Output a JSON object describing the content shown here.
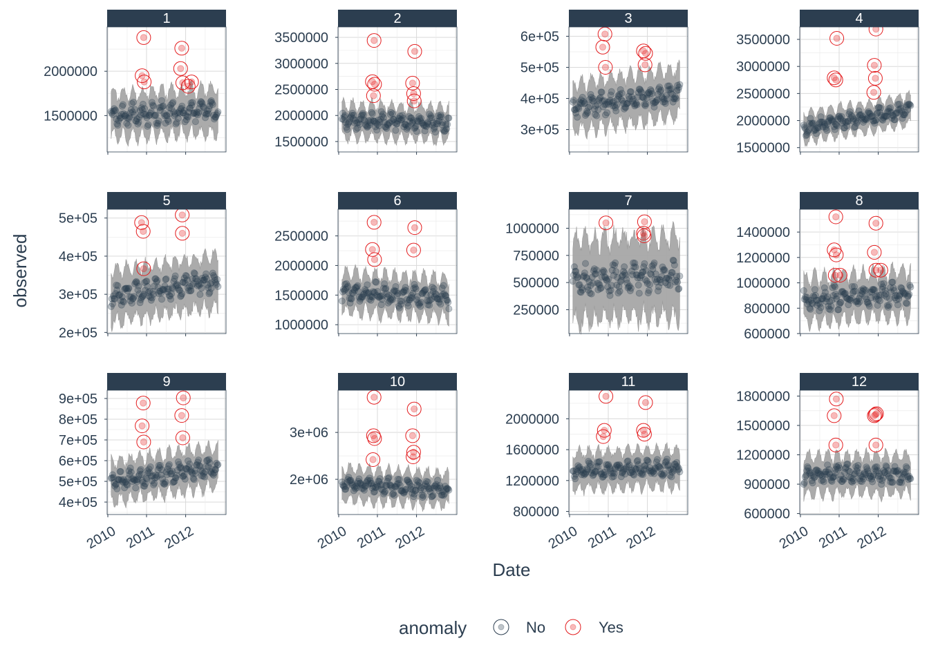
{
  "chart_data": {
    "type": "scatter",
    "layout": "faceted 3x4 time-series with anomaly markers",
    "xlabel": "Date",
    "ylabel": "observed",
    "x_ticks": [
      "2010",
      "2011",
      "2012"
    ],
    "x_range": [
      "2010-01-01",
      "2012-11-01"
    ],
    "legend": {
      "title": "anomaly",
      "position": "bottom",
      "entries": [
        {
          "label": "No",
          "color": "#2c3e50"
        },
        {
          "label": "Yes",
          "color": "#e31a1c"
        }
      ]
    },
    "colors": {
      "strip": "#2c3e50",
      "band": "#a6a6a6",
      "normal_point": "#2c3e50",
      "anomaly_point": "#e31a1c",
      "grid": "#d9d9d9"
    },
    "panels": [
      {
        "label": "1",
        "ylim": [
          1090000,
          2500000
        ],
        "yticks": [
          1500000,
          2000000
        ],
        "tick_labels": [
          "1500000",
          "2000000"
        ],
        "trend": [
          1500000,
          1560000
        ],
        "amp": 80000,
        "band": 240000,
        "anomalies": [
          [
            "2010-12-05",
            2380000
          ],
          [
            "2010-11-20",
            1950000
          ],
          [
            "2010-12-10",
            1880000
          ],
          [
            "2011-11-25",
            2260000
          ],
          [
            "2011-11-15",
            2030000
          ],
          [
            "2011-12-05",
            1870000
          ],
          [
            "2012-01-25",
            1830000
          ],
          [
            "2012-02-25",
            1880000
          ]
        ]
      },
      {
        "label": "2",
        "ylim": [
          1300000,
          3700000
        ],
        "yticks": [
          1500000,
          2000000,
          2500000,
          3000000,
          3500000
        ],
        "tick_labels": [
          "1500000",
          "2000000",
          "2500000",
          "3000000",
          "3500000"
        ],
        "trend": [
          1900000,
          1850000
        ],
        "amp": 110000,
        "band": 300000,
        "anomalies": [
          [
            "2010-12-01",
            3440000
          ],
          [
            "2010-11-15",
            2650000
          ],
          [
            "2010-12-05",
            2600000
          ],
          [
            "2010-11-25",
            2380000
          ],
          [
            "2011-12-15",
            3230000
          ],
          [
            "2011-11-25",
            2620000
          ],
          [
            "2011-12-05",
            2420000
          ],
          [
            "2011-12-10",
            2280000
          ]
        ]
      },
      {
        "label": "3",
        "ylim": [
          228000,
          630000
        ],
        "yticks": [
          300000,
          400000,
          500000,
          600000
        ],
        "tick_labels": [
          "3e+05",
          "4e+05",
          "5e+05",
          "6e+05"
        ],
        "trend": [
          370000,
          420000
        ],
        "amp": 22000,
        "band": 75000,
        "anomalies": [
          [
            "2010-12-01",
            607000
          ],
          [
            "2010-11-10",
            565000
          ],
          [
            "2010-12-05",
            500000
          ],
          [
            "2011-11-25",
            553000
          ],
          [
            "2011-12-15",
            545000
          ],
          [
            "2011-12-10",
            508000
          ]
        ]
      },
      {
        "label": "4",
        "ylim": [
          1420000,
          3730000
        ],
        "yticks": [
          1500000,
          2000000,
          2500000,
          3000000,
          3500000
        ],
        "tick_labels": [
          "1500000",
          "2000000",
          "2500000",
          "3000000",
          "3500000"
        ],
        "trend": [
          1870000,
          2200000
        ],
        "amp": 90000,
        "band": 250000,
        "anomalies": [
          [
            "2010-12-10",
            3520000
          ],
          [
            "2010-11-15",
            2790000
          ],
          [
            "2010-12-01",
            2750000
          ],
          [
            "2011-12-10",
            3690000
          ],
          [
            "2011-11-25",
            3020000
          ],
          [
            "2011-12-05",
            2780000
          ],
          [
            "2011-11-20",
            2520000
          ]
        ]
      },
      {
        "label": "5",
        "ylim": [
          197000,
          523000
        ],
        "yticks": [
          200000,
          300000,
          400000,
          500000
        ],
        "tick_labels": [
          "2e+05",
          "3e+05",
          "4e+05",
          "5e+05"
        ],
        "trend": [
          295000,
          335000
        ],
        "amp": 18000,
        "band": 65000,
        "anomalies": [
          [
            "2010-11-15",
            488000
          ],
          [
            "2010-12-01",
            465000
          ],
          [
            "2010-12-05",
            367000
          ],
          [
            "2011-11-30",
            508000
          ],
          [
            "2011-12-01",
            460000
          ]
        ]
      },
      {
        "label": "6",
        "ylim": [
          850000,
          2950000
        ],
        "yticks": [
          1000000,
          1500000,
          2000000,
          2500000
        ],
        "tick_labels": [
          "1000000",
          "1500000",
          "2000000",
          "2500000"
        ],
        "trend": [
          1550000,
          1450000
        ],
        "amp": 120000,
        "band": 320000,
        "anomalies": [
          [
            "2010-12-01",
            2730000
          ],
          [
            "2010-11-15",
            2270000
          ],
          [
            "2010-12-05",
            2100000
          ],
          [
            "2011-12-15",
            2640000
          ],
          [
            "2011-12-05",
            2260000
          ]
        ]
      },
      {
        "label": "7",
        "ylim": [
          30000,
          1175000
        ],
        "yticks": [
          250000,
          500000,
          750000,
          1000000
        ],
        "tick_labels": [
          "250000",
          "500000",
          "750000",
          "1000000"
        ],
        "trend": [
          520000,
          560000
        ],
        "amp": 90000,
        "band": 360000,
        "anomalies": [
          [
            "2010-12-10",
            1050000
          ],
          [
            "2011-12-05",
            1060000
          ],
          [
            "2011-11-25",
            955000
          ],
          [
            "2011-12-01",
            930000
          ]
        ]
      },
      {
        "label": "8",
        "ylim": [
          600000,
          1580000
        ],
        "yticks": [
          600000,
          800000,
          1000000,
          1200000,
          1400000
        ],
        "tick_labels": [
          "600000",
          "800000",
          "1000000",
          "1200000",
          "1400000"
        ],
        "trend": [
          860000,
          920000
        ],
        "amp": 60000,
        "band": 170000,
        "anomalies": [
          [
            "2010-12-01",
            1520000
          ],
          [
            "2010-11-15",
            1260000
          ],
          [
            "2010-12-05",
            1220000
          ],
          [
            "2010-11-25",
            1060000
          ],
          [
            "2011-01-10",
            1060000
          ],
          [
            "2011-12-10",
            1470000
          ],
          [
            "2011-11-25",
            1240000
          ],
          [
            "2011-12-10",
            1100000
          ],
          [
            "2012-01-25",
            1100000
          ]
        ]
      },
      {
        "label": "9",
        "ylim": [
          340000,
          940000
        ],
        "yticks": [
          400000,
          500000,
          600000,
          700000,
          800000,
          900000
        ],
        "tick_labels": [
          "4e+05",
          "5e+05",
          "6e+05",
          "7e+05",
          "8e+05",
          "9e+05"
        ],
        "trend": [
          500000,
          570000
        ],
        "amp": 30000,
        "band": 95000,
        "anomalies": [
          [
            "2010-12-01",
            878000
          ],
          [
            "2010-11-20",
            768000
          ],
          [
            "2010-12-05",
            690000
          ],
          [
            "2011-12-10",
            903000
          ],
          [
            "2011-11-25",
            818000
          ],
          [
            "2011-12-05",
            710000
          ]
        ]
      },
      {
        "label": "10",
        "ylim": [
          1250000,
          3900000
        ],
        "yticks": [
          2000000,
          3000000
        ],
        "tick_labels": [
          "2e+06",
          "3e+06"
        ],
        "trend": [
          1900000,
          1780000
        ],
        "amp": 110000,
        "band": 330000,
        "anomalies": [
          [
            "2010-12-01",
            3750000
          ],
          [
            "2010-11-25",
            2930000
          ],
          [
            "2010-12-05",
            2870000
          ],
          [
            "2010-11-20",
            2420000
          ],
          [
            "2011-12-10",
            3500000
          ],
          [
            "2011-11-25",
            2930000
          ],
          [
            "2011-12-05",
            2580000
          ],
          [
            "2011-11-30",
            2480000
          ]
        ]
      },
      {
        "label": "11",
        "ylim": [
          760000,
          2370000
        ],
        "yticks": [
          800000,
          1200000,
          1600000,
          2000000
        ],
        "tick_labels": [
          "800000",
          "1200000",
          "1600000",
          "2000000"
        ],
        "trend": [
          1330000,
          1360000
        ],
        "amp": 70000,
        "band": 230000,
        "anomalies": [
          [
            "2010-12-10",
            2290000
          ],
          [
            "2010-11-25",
            1850000
          ],
          [
            "2010-11-15",
            1770000
          ],
          [
            "2011-12-15",
            2210000
          ],
          [
            "2011-11-25",
            1850000
          ],
          [
            "2011-12-05",
            1800000
          ]
        ]
      },
      {
        "label": "12",
        "ylim": [
          590000,
          1860000
        ],
        "yticks": [
          600000,
          900000,
          1200000,
          1500000,
          1800000
        ],
        "tick_labels": [
          "600000",
          "900000",
          "1200000",
          "1500000",
          "1800000"
        ],
        "trend": [
          1000000,
          1000000
        ],
        "amp": 60000,
        "band": 190000,
        "anomalies": [
          [
            "2010-12-05",
            1770000
          ],
          [
            "2010-11-15",
            1600000
          ],
          [
            "2010-12-01",
            1300000
          ],
          [
            "2011-12-05",
            1610000
          ],
          [
            "2011-12-15",
            1620000
          ],
          [
            "2011-11-25",
            1600000
          ],
          [
            "2011-12-10",
            1300000
          ]
        ]
      }
    ]
  }
}
